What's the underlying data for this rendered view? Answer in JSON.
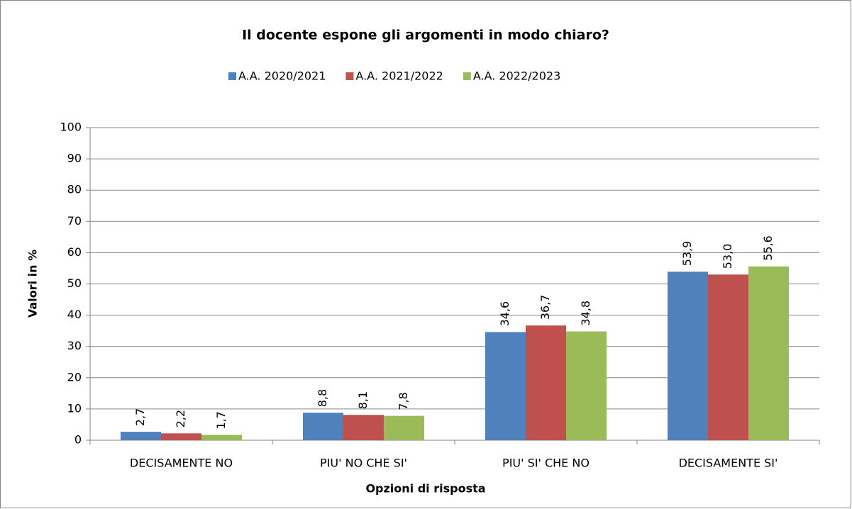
{
  "chart_data": {
    "type": "bar",
    "title": "Il docente espone gli argomenti in modo chiaro?",
    "x_label": "Opzioni di risposta",
    "y_label": "Valori in %",
    "categories": [
      "DECISAMENTE NO",
      "PIU' NO CHE SI'",
      "PIU' SI' CHE NO",
      "DECISAMENTE SI'"
    ],
    "series": [
      {
        "name": "A.A. 2020/2021",
        "color": "#4f81bd",
        "values": [
          2.7,
          8.8,
          34.6,
          53.9
        ],
        "value_labels": [
          "2,7",
          "8,8",
          "34,6",
          "53,9"
        ]
      },
      {
        "name": "A.A. 2021/2022",
        "color": "#c0504d",
        "values": [
          2.2,
          8.1,
          36.7,
          53.0
        ],
        "value_labels": [
          "2,2",
          "8,1",
          "36,7",
          "53,0"
        ]
      },
      {
        "name": "A.A. 2022/2023",
        "color": "#9bbb59",
        "values": [
          1.7,
          7.8,
          34.8,
          55.6
        ],
        "value_labels": [
          "1,7",
          "7,8",
          "34,8",
          "55,6"
        ]
      }
    ],
    "ylim": [
      0,
      100
    ],
    "yticks": [
      0,
      10,
      20,
      30,
      40,
      50,
      60,
      70,
      80,
      90,
      100
    ],
    "grid": true,
    "legend": "top"
  }
}
